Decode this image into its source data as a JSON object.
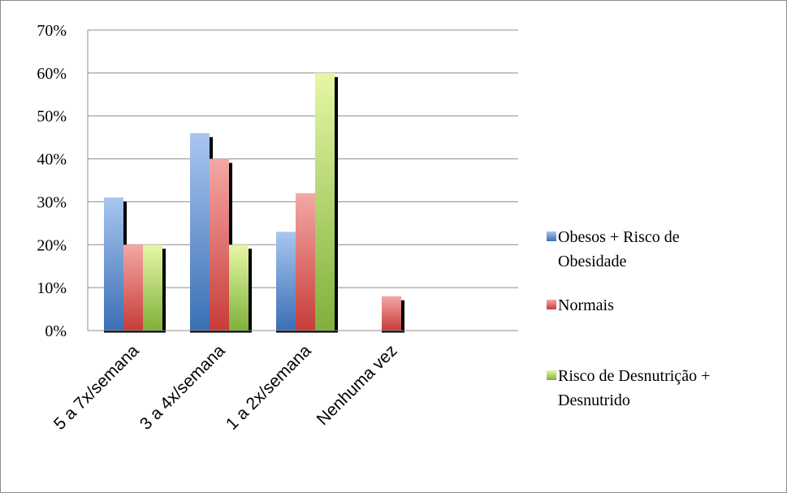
{
  "chart_data": {
    "type": "bar",
    "categories": [
      "5 a 7x/semana",
      "3 a  4x/semana",
      "1 a 2x/semana",
      "Nenhuma vez"
    ],
    "series": [
      {
        "name": "Obesos + Risco de Obesidade",
        "legend_lines": [
          "Obesos + Risco de",
          "Obesidade"
        ],
        "values": [
          31,
          46,
          23,
          0
        ],
        "color": "#4f81bd"
      },
      {
        "name": "Normais",
        "legend_lines": [
          "Normais"
        ],
        "values": [
          20,
          40,
          32,
          8
        ],
        "color": "#c0504d"
      },
      {
        "name": "Risco de Desnutrição + Desnutrido",
        "legend_lines": [
          "Risco de Desnutrição +",
          "Desnutrido"
        ],
        "values": [
          20,
          20,
          60,
          0
        ],
        "color": "#9bbb59"
      }
    ],
    "yticks": [
      "0%",
      "10%",
      "20%",
      "30%",
      "40%",
      "50%",
      "60%",
      "70%"
    ],
    "ylim": [
      0,
      70
    ],
    "grid": true,
    "legend_position": "right"
  }
}
